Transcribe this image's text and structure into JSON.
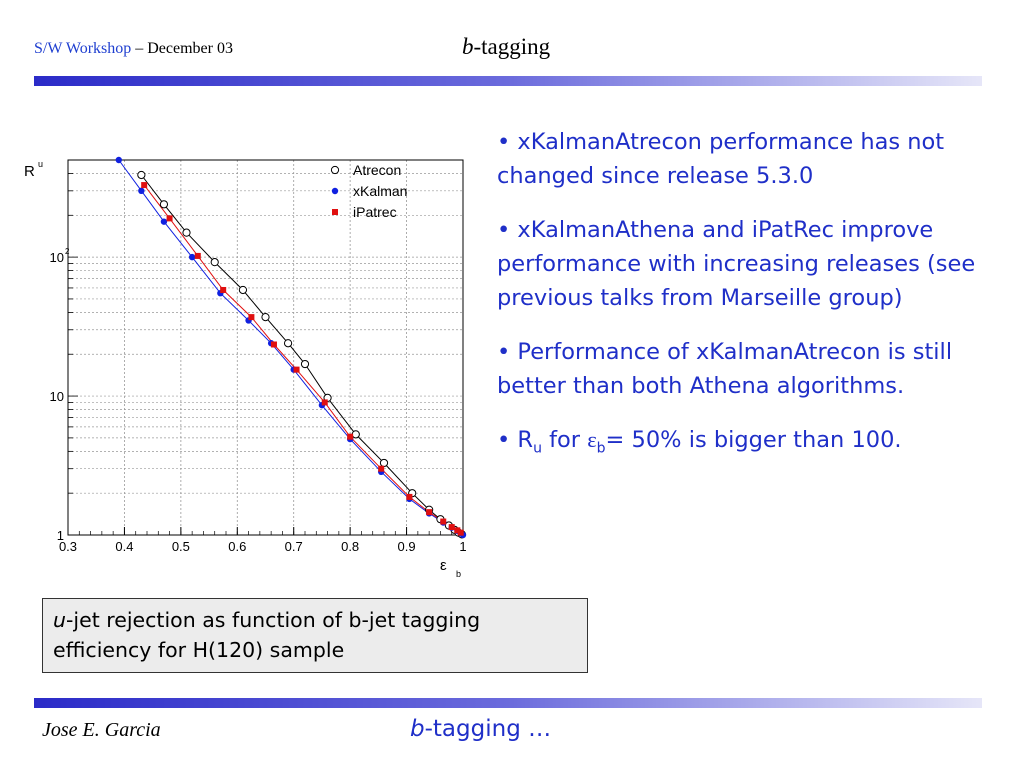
{
  "header": {
    "workshop": "S/W Workshop",
    "dash": " – ",
    "date": "December 03",
    "title_italic": "b",
    "title_rest": "-tagging"
  },
  "bullets": [
    "• xKalmanAtrecon performance has not changed since release 5.3.0",
    "• xKalmanAthena and iPatRec improve performance with increasing releases (see previous talks from Marseille group)",
    "• Performance of xKalmanAtrecon is still better than both Athena algorithms."
  ],
  "bullet4": {
    "prefix": "• R",
    "sub_u": "u",
    "for_text": " for ",
    "epsilon": "ε",
    "sub_b": "b",
    "rest": "= 50% is bigger than 100."
  },
  "caption": {
    "italic_u": "u",
    "text1": "-jet rejection as function of  b-jet tagging",
    "text2": "efficiency for H(120) sample"
  },
  "footer": {
    "author": "Jose E. Garcia",
    "center_italic": "b",
    "center_rest": "-tagging …"
  },
  "chart_data": {
    "type": "scatter",
    "xlabel": "ε",
    "xlabel_sub": "b",
    "ylabel": "R",
    "ylabel_sub": "u",
    "xlim": [
      0.3,
      1.0
    ],
    "ylim": [
      1,
      500
    ],
    "yscale": "log",
    "grid": true,
    "legend_position": "top-right",
    "x_ticks": [
      "0.3",
      "0.4",
      "0.5",
      "0.6",
      "0.7",
      "0.8",
      "0.9",
      "1"
    ],
    "y_ticks": [
      {
        "value": 1,
        "label": "1"
      },
      {
        "value": 10,
        "label": "10"
      },
      {
        "value": 100,
        "label": "10",
        "sup": "2"
      }
    ],
    "series": [
      {
        "name": "Atrecon",
        "marker": "open-circle",
        "color": "#000000",
        "x": [
          0.43,
          0.47,
          0.51,
          0.56,
          0.61,
          0.65,
          0.69,
          0.72,
          0.76,
          0.81,
          0.86,
          0.91,
          0.94,
          0.96,
          0.975,
          0.985,
          0.992,
          0.998
        ],
        "y": [
          390,
          240,
          150,
          92,
          58,
          37,
          24,
          17,
          9.7,
          5.3,
          3.3,
          2.0,
          1.52,
          1.3,
          1.17,
          1.09,
          1.04,
          1.01
        ]
      },
      {
        "name": "xKalman",
        "marker": "filled-circle",
        "color": "#1020e0",
        "x": [
          0.39,
          0.43,
          0.47,
          0.52,
          0.57,
          0.62,
          0.66,
          0.7,
          0.75,
          0.8,
          0.855,
          0.905,
          0.94,
          0.965,
          0.98,
          0.99,
          0.996,
          1.0
        ],
        "y": [
          500,
          300,
          180,
          100,
          55,
          35,
          24,
          15.5,
          8.6,
          4.9,
          2.85,
          1.82,
          1.43,
          1.23,
          1.13,
          1.07,
          1.03,
          1.0
        ]
      },
      {
        "name": "iPatrec",
        "marker": "filled-square",
        "color": "#e01010",
        "x": [
          0.435,
          0.48,
          0.53,
          0.575,
          0.625,
          0.665,
          0.705,
          0.755,
          0.8,
          0.855,
          0.905,
          0.94,
          0.965,
          0.98,
          0.99,
          0.996
        ],
        "y": [
          330,
          190,
          102,
          58,
          37,
          23.5,
          15.5,
          9.0,
          5.1,
          3.0,
          1.88,
          1.46,
          1.25,
          1.14,
          1.08,
          1.04
        ]
      }
    ]
  }
}
